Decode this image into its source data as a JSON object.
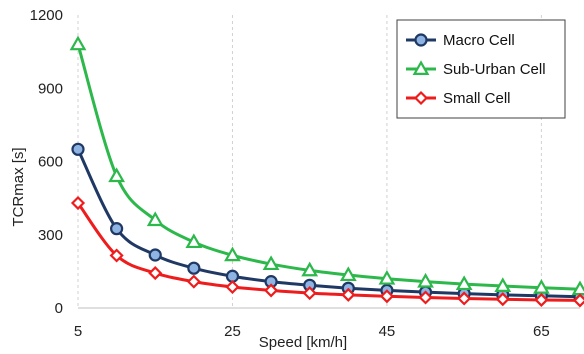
{
  "chart_data": {
    "type": "line",
    "title": "",
    "xlabel": "Speed [km/h]",
    "ylabel": "TCRmax [s]",
    "xlim": [
      5,
      70
    ],
    "ylim": [
      0,
      1200
    ],
    "x_ticks": [
      "5",
      "25",
      "45",
      "65"
    ],
    "y_ticks": [
      "0",
      "300",
      "600",
      "900",
      "1200"
    ],
    "x_tick_values": [
      5,
      25,
      45,
      65
    ],
    "y_tick_values": [
      0,
      300,
      600,
      900,
      1200
    ],
    "grid": "vertical",
    "legend_position": "top-right",
    "x": [
      5,
      10,
      15,
      20,
      25,
      30,
      35,
      40,
      45,
      50,
      55,
      60,
      65,
      70
    ],
    "series": [
      {
        "name": "Macro Cell",
        "color": "#1f3864",
        "fill": "#8eb4e3",
        "marker": "circle",
        "values": [
          650,
          325,
          217,
          163,
          130,
          108,
          93,
          81,
          72,
          65,
          59,
          54,
          50,
          46
        ]
      },
      {
        "name": "Sub-Urban Cell",
        "color": "#2db84b",
        "fill": "#ffffff",
        "marker": "triangle",
        "values": [
          1080,
          540,
          360,
          270,
          216,
          180,
          154,
          135,
          120,
          108,
          98,
          90,
          83,
          77
        ]
      },
      {
        "name": "Small Cell",
        "color": "#ee1c1c",
        "fill": "#ffffff",
        "marker": "diamond",
        "values": [
          430,
          215,
          143,
          108,
          86,
          72,
          61,
          54,
          48,
          43,
          39,
          36,
          33,
          31
        ]
      }
    ]
  }
}
